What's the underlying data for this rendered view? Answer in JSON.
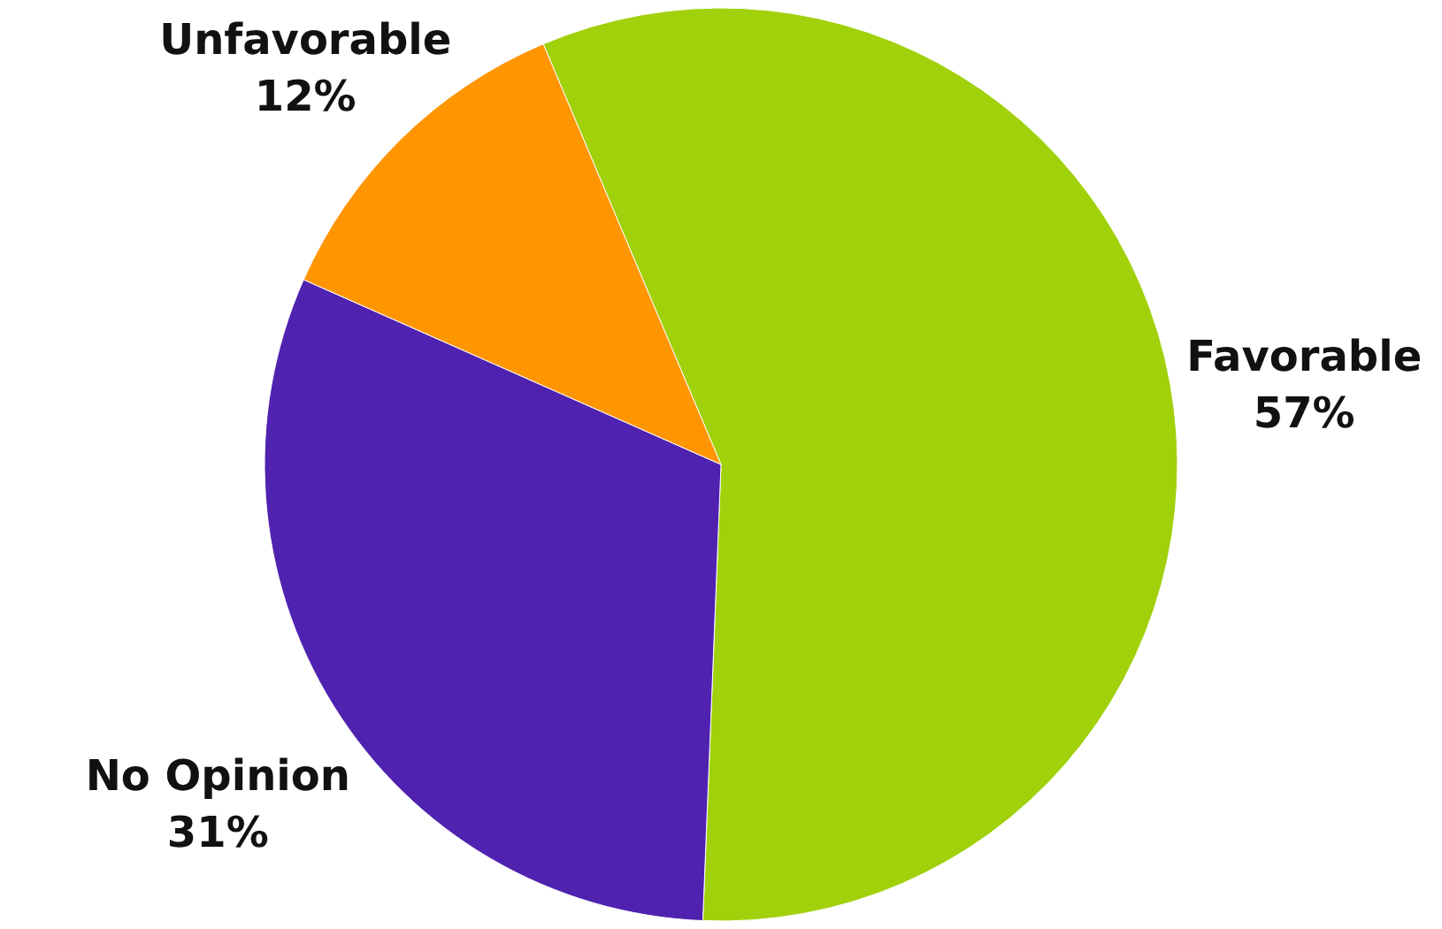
{
  "chart_data": {
    "type": "pie",
    "categories": [
      "Favorable",
      "No Opinion",
      "Unfavorable"
    ],
    "values": [
      57,
      31,
      12
    ],
    "colors": [
      "#a0d10a",
      "#4f22b0",
      "#ff9500"
    ],
    "value_labels": [
      "57%",
      "31%",
      "12%"
    ]
  }
}
